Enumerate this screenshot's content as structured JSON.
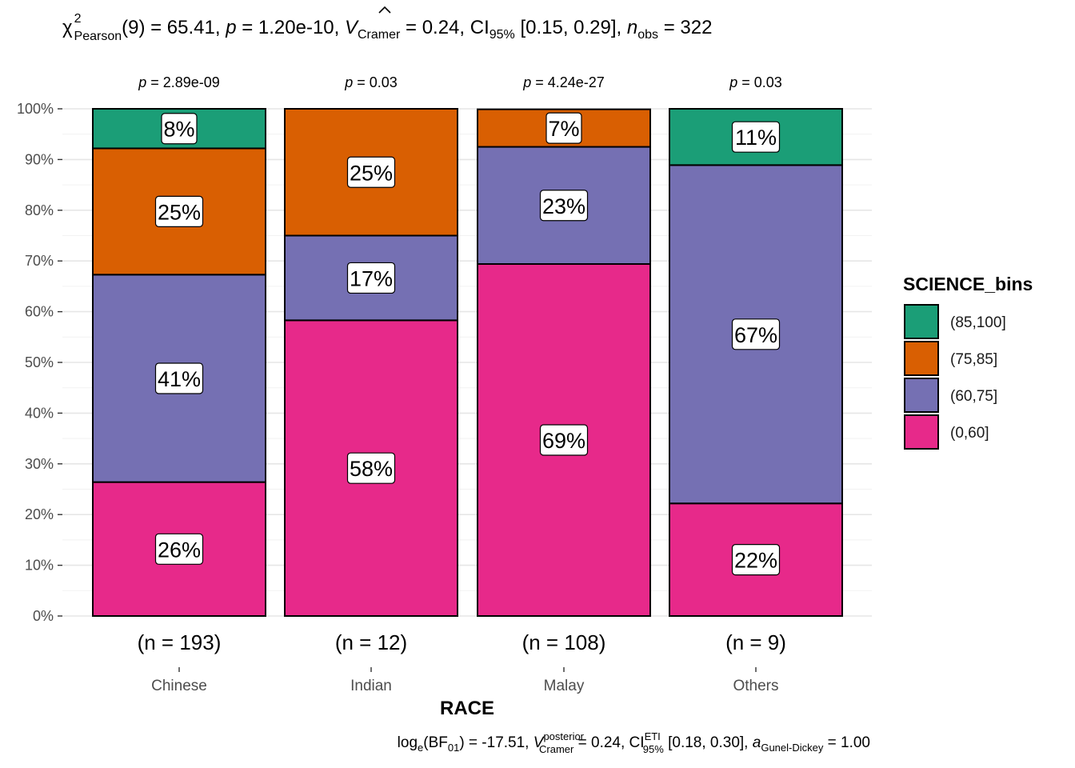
{
  "header": {
    "chi": "χ",
    "chi_sup": "2",
    "chi_sub": "Pearson",
    "part1": "(9) = 65.41, ",
    "p_sym": "p",
    "part2": " = 1.20e-10, ",
    "v_sym": "V",
    "v_sub": "Cramer",
    "part3": " = 0.24, CI",
    "ci_sub": "95%",
    "part4": " [0.15, 0.29], ",
    "n_sym": "n",
    "n_sub": "obs",
    "part5": " = 322"
  },
  "footer": {
    "log": "log",
    "log_sub": "e",
    "bf": "(BF",
    "bf_sub": "01",
    "part1": ") = -17.51, ",
    "v_sym": "V",
    "v_sup": "posterior",
    "v_sub": "Cramer",
    "part2": " = 0.24, CI",
    "ci_sup": "ETI",
    "ci_sub": "95%",
    "part3": " [0.18, 0.30], ",
    "a_sym": "a",
    "a_sub": "Gunel-Dickey",
    "part4": " = 1.00"
  },
  "chart_data": {
    "type": "bar",
    "stacked": true,
    "x_title": "RACE",
    "categories": [
      "Chinese",
      "Indian",
      "Malay",
      "Others"
    ],
    "n_labels": [
      "(n = 193)",
      "(n = 12)",
      "(n = 108)",
      "(n = 9)"
    ],
    "p_labels": [
      {
        "sym": "p",
        "text": " = 2.89e-09"
      },
      {
        "sym": "p",
        "text": " = 0.03"
      },
      {
        "sym": "p",
        "text": " = 4.24e-27"
      },
      {
        "sym": "p",
        "text": " = 0.03"
      }
    ],
    "y_ticks": [
      "0%",
      "10%",
      "20%",
      "30%",
      "40%",
      "50%",
      "60%",
      "70%",
      "80%",
      "90%",
      "100%"
    ],
    "ylim": [
      0,
      100
    ],
    "legend_title": "SCIENCE_bins",
    "legend_position": "right",
    "series": [
      {
        "name": "(0,60]",
        "color": "#E7298A",
        "values": [
          26.4,
          58.3,
          69.4,
          22.2
        ],
        "labels": [
          "26%",
          "58%",
          "69%",
          "22%"
        ]
      },
      {
        "name": "(60,75]",
        "color": "#7570B3",
        "values": [
          40.9,
          16.7,
          23.1,
          66.7
        ],
        "labels": [
          "41%",
          "17%",
          "23%",
          "67%"
        ]
      },
      {
        "name": "(75,85]",
        "color": "#D95F02",
        "values": [
          24.9,
          25.0,
          7.4,
          0
        ],
        "labels": [
          "25%",
          "25%",
          "7%",
          ""
        ]
      },
      {
        "name": "(85,100]",
        "color": "#1B9E77",
        "values": [
          7.8,
          0,
          0,
          11.1
        ],
        "labels": [
          "8%",
          "",
          "",
          "11%"
        ]
      }
    ],
    "legend_order": [
      "(85,100]",
      "(75,85]",
      "(60,75]",
      "(0,60]"
    ],
    "grid": true
  }
}
